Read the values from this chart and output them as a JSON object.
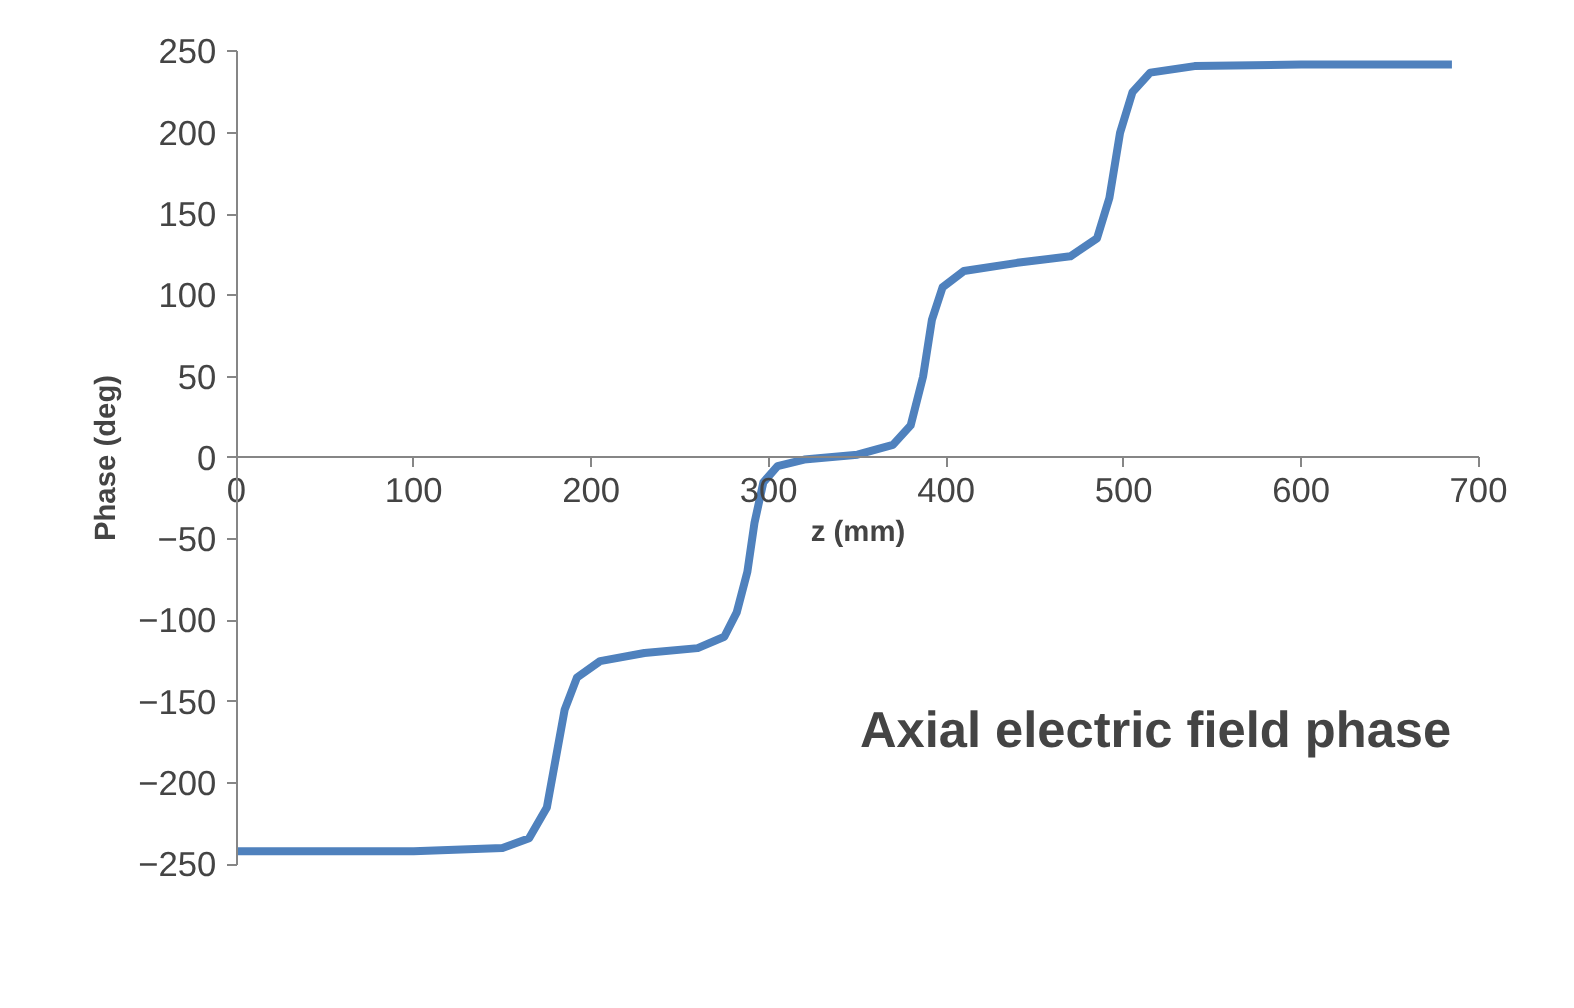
{
  "chart_data": {
    "type": "line",
    "title": "Axial electric field phase",
    "xlabel": "z (mm)",
    "ylabel": "Phase (deg)",
    "xlim": [
      0,
      700
    ],
    "xticks": [
      0,
      100,
      200,
      300,
      400,
      500,
      600,
      700
    ],
    "ylim": [
      -250,
      250
    ],
    "yticks": [
      -250,
      -200,
      -150,
      -100,
      -50,
      0,
      50,
      100,
      150,
      200,
      250
    ],
    "grid": false,
    "marker": "none",
    "line_style": "solid",
    "series": [
      {
        "color": "#4f81bd",
        "x": [
          0,
          100,
          150,
          165,
          175,
          180,
          185,
          192,
          205,
          230,
          260,
          275,
          282,
          288,
          292,
          297,
          305,
          320,
          350,
          370,
          380,
          387,
          392,
          398,
          410,
          440,
          470,
          485,
          492,
          498,
          505,
          515,
          540,
          600,
          685
        ],
        "values": [
          -242,
          -242,
          -240,
          -234,
          -215,
          -185,
          -155,
          -135,
          -125,
          -120,
          -117,
          -110,
          -95,
          -70,
          -40,
          -15,
          -5,
          -1,
          2,
          8,
          20,
          50,
          85,
          105,
          115,
          120,
          124,
          135,
          160,
          200,
          225,
          237,
          241,
          242,
          242
        ]
      }
    ]
  }
}
